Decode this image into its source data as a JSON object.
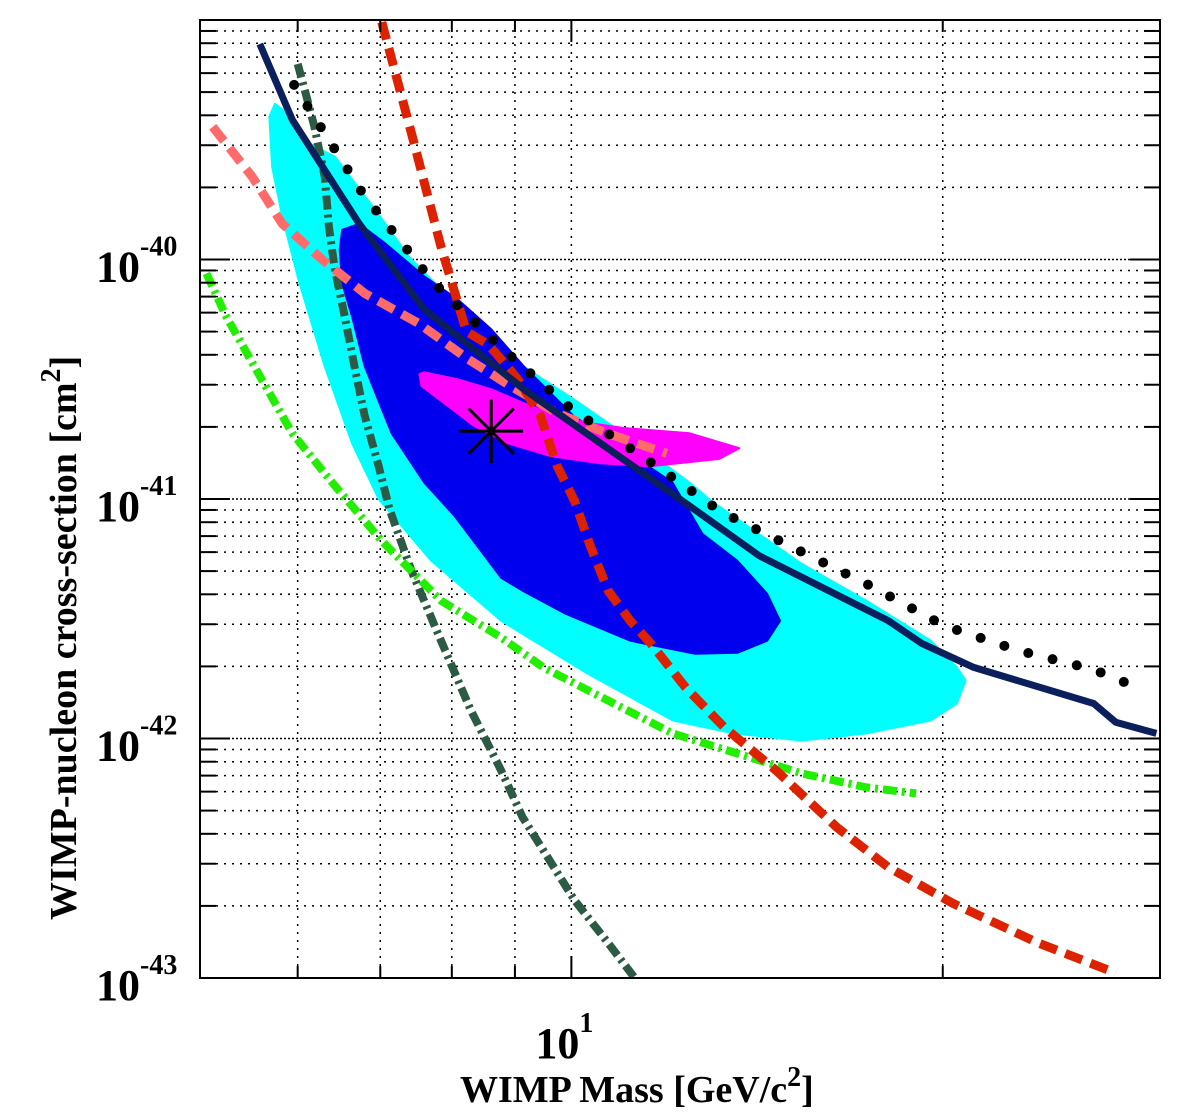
{
  "chart_data": {
    "type": "line",
    "xlabel": "WIMP Mass [GeV/c",
    "xlabel_sup": "2",
    "xlabel_end": "]",
    "ylabel": "WIMP-nucleon cross-section [cm",
    "ylabel_sup": "2",
    "ylabel_end": "]",
    "xscale": "log",
    "yscale": "log",
    "xlim": [
      5,
      30
    ],
    "ylim": [
      1e-43,
      1e-39
    ],
    "grid": true,
    "x_ticks": [
      {
        "value": 10,
        "base": "10",
        "exp": "1"
      }
    ],
    "y_ticks": [
      {
        "value": 1e-40,
        "base": "10",
        "exp": "-40"
      },
      {
        "value": 1e-41,
        "base": "10",
        "exp": "-41"
      },
      {
        "value": 1e-42,
        "base": "10",
        "exp": "-42"
      },
      {
        "value": 1e-43,
        "base": "10",
        "exp": "-43"
      }
    ],
    "regions": [
      {
        "color": "#00ffff",
        "points": [
          [
            5.75,
            4.47e-40
          ],
          [
            5.69,
            3.94e-40
          ],
          [
            5.72,
            2.44e-40
          ],
          [
            5.83,
            1.51e-40
          ],
          [
            6.02,
            7.94e-41
          ],
          [
            6.31,
            3.58e-41
          ],
          [
            6.64,
            1.71e-41
          ],
          [
            6.98,
            1e-41
          ],
          [
            7.7,
            5.52e-42
          ],
          [
            8.77,
            3.1e-42
          ],
          [
            10.3,
            1.87e-42
          ],
          [
            12.08,
            1.19e-42
          ],
          [
            13.53,
            1.05e-42
          ],
          [
            15.37,
            9.8e-43
          ],
          [
            17.34,
            1.05e-42
          ],
          [
            19.56,
            1.19e-42
          ],
          [
            20.53,
            1.4e-42
          ],
          [
            20.87,
            1.75e-42
          ],
          [
            20.53,
            1.98e-42
          ],
          [
            19.56,
            2.56e-42
          ],
          [
            17.34,
            3.76e-42
          ],
          [
            15.37,
            5.36e-42
          ],
          [
            12.99,
            9.8e-42
          ],
          [
            12.47,
            1.17e-41
          ],
          [
            11.01,
            1.88e-41
          ],
          [
            10.04,
            2.61e-41
          ],
          [
            8.88,
            3.94e-41
          ],
          [
            8.09,
            6.37e-41
          ],
          [
            7.38,
            1.03e-40
          ],
          [
            6.93,
            1.62e-40
          ],
          [
            6.43,
            2.69e-40
          ],
          [
            6.13,
            3.04e-40
          ],
          [
            5.94,
            3.94e-40
          ]
        ]
      },
      {
        "color": "#0000ee",
        "points": [
          [
            6.52,
            1.33e-40
          ],
          [
            6.73,
            1.41e-40
          ],
          [
            7.06,
            1.17e-40
          ],
          [
            7.6,
            8.5e-41
          ],
          [
            8.09,
            6.81e-41
          ],
          [
            8.61,
            5.11e-41
          ],
          [
            9.15,
            3.58e-41
          ],
          [
            10.04,
            2.22e-41
          ],
          [
            11.01,
            1.62e-41
          ],
          [
            12.08,
            1.17e-41
          ],
          [
            12.77,
            7.15e-42
          ],
          [
            13.63,
            5.52e-42
          ],
          [
            14.41,
            4.02e-42
          ],
          [
            14.76,
            3.1e-42
          ],
          [
            14.41,
            2.56e-42
          ],
          [
            13.63,
            2.28e-42
          ],
          [
            12.58,
            2.26e-42
          ],
          [
            11.16,
            2.56e-42
          ],
          [
            9.89,
            3.32e-42
          ],
          [
            9.13,
            4.14e-42
          ],
          [
            8.77,
            4.69e-42
          ],
          [
            8.04,
            8.5e-42
          ],
          [
            7.6,
            1.17e-41
          ],
          [
            7.15,
            1.88e-41
          ],
          [
            6.8,
            3.58e-41
          ],
          [
            6.64,
            5.79e-41
          ],
          [
            6.52,
            7.94e-41
          ],
          [
            6.49,
            1.1e-40
          ]
        ]
      },
      {
        "color": "#ff00ff",
        "points": [
          [
            7.53,
            3.32e-41
          ],
          [
            7.6,
            3.38e-41
          ],
          [
            8.09,
            3.16e-41
          ],
          [
            8.61,
            2.87e-41
          ],
          [
            9.15,
            2.51e-41
          ],
          [
            9.74,
            2.22e-41
          ],
          [
            10.36,
            2.07e-41
          ],
          [
            11.01,
            1.98e-41
          ],
          [
            12.47,
            1.88e-41
          ],
          [
            13.68,
            1.63e-41
          ],
          [
            13.18,
            1.47e-41
          ],
          [
            11.58,
            1.37e-41
          ],
          [
            10.55,
            1.41e-41
          ],
          [
            9.62,
            1.51e-41
          ],
          [
            8.88,
            1.71e-41
          ],
          [
            8.34,
            2.02e-41
          ],
          [
            7.89,
            2.51e-41
          ],
          [
            7.56,
            2.96e-41
          ]
        ]
      }
    ],
    "series": [
      {
        "style": "dashdot",
        "color": "#2d5a44",
        "points": [
          [
            6.0,
            6.56e-40
          ],
          [
            6.11,
            4.64e-40
          ],
          [
            6.19,
            3.58e-40
          ],
          [
            6.31,
            2.22e-40
          ],
          [
            6.36,
            1.37e-40
          ],
          [
            6.43,
            9.09e-41
          ],
          [
            6.55,
            5.79e-41
          ],
          [
            6.67,
            3.58e-41
          ],
          [
            6.8,
            2.22e-41
          ],
          [
            6.98,
            1.37e-41
          ],
          [
            7.12,
            9.09e-42
          ],
          [
            7.42,
            5.01e-42
          ],
          [
            7.84,
            2.56e-42
          ],
          [
            8.29,
            1.31e-42
          ],
          [
            8.77,
            7.36e-43
          ],
          [
            9.13,
            4.69e-43
          ],
          [
            9.49,
            3.41e-43
          ],
          [
            10.06,
            2.11e-43
          ],
          [
            10.71,
            1.4e-43
          ],
          [
            11.24,
            1.01e-43
          ]
        ]
      },
      {
        "style": "dashdot",
        "color": "#22ee00",
        "points": [
          [
            5.06,
            8.74e-41
          ],
          [
            5.25,
            5.79e-41
          ],
          [
            5.59,
            3.26e-41
          ],
          [
            5.94,
            1.88e-41
          ],
          [
            6.4,
            1.17e-41
          ],
          [
            7.02,
            6.68e-42
          ],
          [
            7.84,
            3.76e-42
          ],
          [
            8.77,
            2.64e-42
          ],
          [
            9.49,
            1.98e-42
          ],
          [
            10.71,
            1.44e-42
          ],
          [
            12.08,
            1.05e-42
          ],
          [
            13.63,
            8.66e-43
          ],
          [
            15.37,
            7.15e-43
          ],
          [
            17.34,
            6.25e-43
          ],
          [
            19.03,
            5.9e-43
          ]
        ]
      },
      {
        "style": "dashed",
        "color": "#ff6a6a",
        "points": [
          [
            5.12,
            3.58e-40
          ],
          [
            5.51,
            2.22e-40
          ],
          [
            5.83,
            1.41e-40
          ],
          [
            6.28,
            1e-40
          ],
          [
            6.8,
            7.22e-41
          ],
          [
            7.52,
            5.41e-41
          ],
          [
            8.25,
            3.83e-41
          ],
          [
            8.93,
            2.96e-41
          ],
          [
            9.74,
            2.28e-41
          ],
          [
            10.69,
            1.88e-41
          ],
          [
            11.95,
            1.55e-41
          ]
        ]
      },
      {
        "style": "dashed",
        "color": "#dd2200",
        "points": [
          [
            7.02,
            9.8e-40
          ],
          [
            7.45,
            3.1e-40
          ],
          [
            7.84,
            1.13e-40
          ],
          [
            8.22,
            5.01e-41
          ],
          [
            8.56,
            4.42e-41
          ],
          [
            8.77,
            3.83e-41
          ],
          [
            9.05,
            3.16e-41
          ],
          [
            9.44,
            2.22e-41
          ],
          [
            9.74,
            1.37e-41
          ],
          [
            10.06,
            9.8e-42
          ],
          [
            10.36,
            6.37e-42
          ],
          [
            10.71,
            4.14e-42
          ],
          [
            11.16,
            3.1e-42
          ],
          [
            11.6,
            2.49e-42
          ],
          [
            12.38,
            1.63e-42
          ],
          [
            13.31,
            1.11e-42
          ],
          [
            14.65,
            7.36e-43
          ],
          [
            16.41,
            4.26e-43
          ],
          [
            18.07,
            2.9e-43
          ],
          [
            20.38,
            2.05e-43
          ],
          [
            23.9,
            1.4e-43
          ],
          [
            27.62,
            1.05e-43
          ]
        ]
      },
      {
        "style": "solid",
        "color": "#0a1f5c",
        "points": [
          [
            5.59,
            7.94e-40
          ],
          [
            5.94,
            3.83e-40
          ],
          [
            6.73,
            1.41e-40
          ],
          [
            7.6,
            6.19e-41
          ],
          [
            9.15,
            2.87e-41
          ],
          [
            10.36,
            1.83e-41
          ],
          [
            12.47,
            9.35e-42
          ],
          [
            14.2,
            5.79e-42
          ],
          [
            18.07,
            3.1e-42
          ],
          [
            19.24,
            2.49e-42
          ],
          [
            21.19,
            1.98e-42
          ],
          [
            26.51,
            1.4e-42
          ],
          [
            27.62,
            1.17e-42
          ],
          [
            29.8,
            1.05e-42
          ]
        ]
      },
      {
        "style": "dotted",
        "color": "#000000",
        "points": [
          [
            5.96,
            5.36e-40
          ],
          [
            6.79,
            1.85e-40
          ],
          [
            7.73,
            8.02e-41
          ],
          [
            8.8,
            4.22e-41
          ],
          [
            10.0,
            2.37e-41
          ],
          [
            11.47,
            1.48e-41
          ],
          [
            13.23,
            8.83e-42
          ],
          [
            15.2,
            6.19e-42
          ],
          [
            17.47,
            4.34e-42
          ],
          [
            20.04,
            2.96e-42
          ],
          [
            23.03,
            2.33e-42
          ],
          [
            26.51,
            1.94e-42
          ],
          [
            29.04,
            1.6e-42
          ]
        ]
      }
    ],
    "marker": {
      "symbol": "asterisk",
      "color": "#000000",
      "x": 8.61,
      "y": 1.92e-41
    }
  }
}
